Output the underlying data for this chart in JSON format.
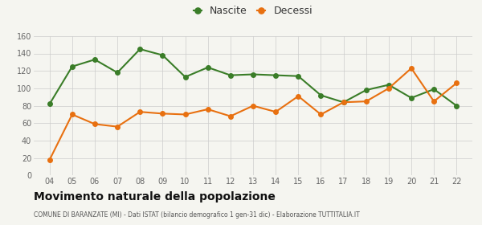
{
  "years": [
    4,
    5,
    6,
    7,
    8,
    9,
    10,
    11,
    12,
    13,
    14,
    15,
    16,
    17,
    18,
    19,
    20,
    21,
    22
  ],
  "nascite": [
    82,
    125,
    133,
    118,
    145,
    138,
    113,
    124,
    115,
    116,
    115,
    114,
    92,
    84,
    98,
    104,
    89,
    99,
    80
  ],
  "decessi": [
    18,
    70,
    59,
    56,
    73,
    71,
    70,
    76,
    68,
    80,
    73,
    91,
    70,
    84,
    85,
    100,
    123,
    85,
    106
  ],
  "nascite_color": "#3a7d28",
  "decessi_color": "#e87010",
  "background_color": "#f5f5f0",
  "grid_color": "#cccccc",
  "ylim": [
    0,
    160
  ],
  "yticks": [
    0,
    20,
    40,
    60,
    80,
    100,
    120,
    140,
    160
  ],
  "title": "Movimento naturale della popolazione",
  "subtitle": "COMUNE DI BARANZATE (MI) - Dati ISTAT (bilancio demografico 1 gen-31 dic) - Elaborazione TUTTITALIA.IT",
  "legend_nascite": "Nascite",
  "legend_decessi": "Decessi",
  "marker_size": 4,
  "line_width": 1.5
}
